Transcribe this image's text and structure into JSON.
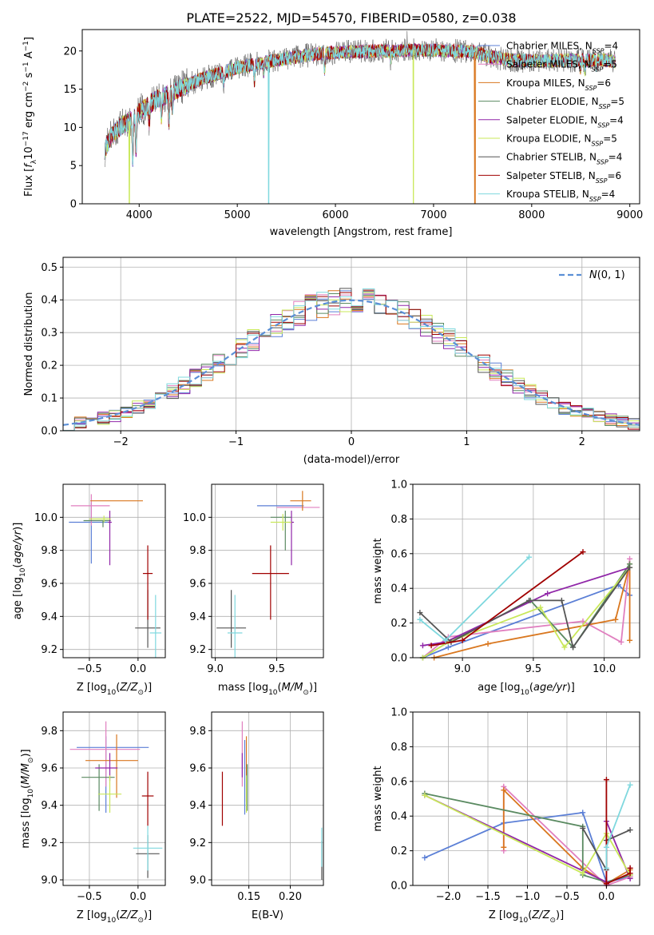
{
  "title": "PLATE=2522, MJD=54570, FIBERID=0580, z=0.038",
  "colors": {
    "series": [
      "#5b7fd6",
      "#e07fbf",
      "#d9771f",
      "#5a8a61",
      "#9026a8",
      "#c9e85a",
      "#555555",
      "#a00000",
      "#7fd8de"
    ],
    "gauss": "#5b8fd6",
    "grid": "#b0b0b0"
  },
  "chart_data": [
    {
      "id": "spectrum",
      "type": "line",
      "xlabel": "wavelength [Angstrom, rest frame]",
      "ylabel": "Flux [f_λ10^{-17} erg cm^{-2} s^{-1} A^{-1}]",
      "xlim": [
        3420,
        9100
      ],
      "ylim": [
        0,
        22.8
      ],
      "xticks": [
        4000,
        5000,
        6000,
        7000,
        8000,
        9000
      ],
      "yticks": [
        0,
        5,
        10,
        15,
        20
      ],
      "grid": false,
      "legend_position": "right",
      "legend": [
        {
          "model": "Chabrier MILES",
          "n": "4"
        },
        {
          "model": "Salpeter MILES",
          "n": "5"
        },
        {
          "model": "Kroupa MILES",
          "n": "6"
        },
        {
          "model": "Chabrier ELODIE",
          "n": "5"
        },
        {
          "model": "Salpeter ELODIE",
          "n": "4"
        },
        {
          "model": "Kroupa ELODIE",
          "n": "5"
        },
        {
          "model": "Chabrier STELIB",
          "n": "4"
        },
        {
          "model": "Salpeter STELIB",
          "n": "6"
        },
        {
          "model": "Kroupa STELIB",
          "n": "4"
        }
      ],
      "continuum": [
        [
          3650,
          7.0
        ],
        [
          3700,
          8.5
        ],
        [
          3800,
          10.0
        ],
        [
          3900,
          10.8
        ],
        [
          4000,
          12.0
        ],
        [
          4100,
          13.0
        ],
        [
          4200,
          13.8
        ],
        [
          4400,
          15.0
        ],
        [
          4600,
          16.2
        ],
        [
          4800,
          17.0
        ],
        [
          5000,
          17.8
        ],
        [
          5200,
          18.3
        ],
        [
          5400,
          18.8
        ],
        [
          5600,
          19.2
        ],
        [
          5800,
          19.6
        ],
        [
          6000,
          19.8
        ],
        [
          6200,
          19.9
        ],
        [
          6400,
          20.0
        ],
        [
          6600,
          20.0
        ],
        [
          6800,
          20.1
        ],
        [
          7000,
          20.1
        ],
        [
          7200,
          20.0
        ],
        [
          7400,
          19.9
        ],
        [
          7600,
          19.2
        ],
        [
          7800,
          18.8
        ],
        [
          8000,
          18.7
        ],
        [
          8200,
          18.7
        ],
        [
          8400,
          18.8
        ],
        [
          8600,
          18.8
        ],
        [
          8700,
          18.9
        ],
        [
          8850,
          18.6
        ]
      ],
      "absorptions": [
        [
          3934,
          5.5
        ],
        [
          3968,
          4.5
        ],
        [
          4102,
          2.5
        ],
        [
          4227,
          2.5
        ],
        [
          4304,
          4.0
        ],
        [
          4340,
          2.0
        ],
        [
          4861,
          1.5
        ],
        [
          5175,
          2.2
        ],
        [
          5270,
          1.2
        ],
        [
          5890,
          2.2
        ],
        [
          6563,
          1.0
        ],
        [
          8498,
          1.0
        ],
        [
          8542,
          1.2
        ],
        [
          8662,
          1.0
        ]
      ],
      "drops": [
        {
          "series": 5,
          "x": 3900,
          "to": 0
        },
        {
          "series": 8,
          "x": 5320,
          "to": 0
        },
        {
          "series": 5,
          "x": 6795,
          "to": 0
        },
        {
          "series": 2,
          "x": 7420,
          "to": 0
        }
      ],
      "spike": {
        "x": 6730,
        "y": 22.6
      }
    },
    {
      "id": "residuals",
      "type": "line",
      "xlabel": "(data-model)/error",
      "ylabel": "Normed distribution",
      "xlim": [
        -2.5,
        2.5
      ],
      "ylim": [
        0,
        0.53
      ],
      "xticks": [
        -2,
        -1,
        0,
        1,
        2
      ],
      "yticks": [
        0,
        0.1,
        0.2,
        0.3,
        0.4,
        0.5
      ],
      "grid": true,
      "legend_position": "upper right",
      "legend_label": "N(0,1)",
      "bin_width": 0.1,
      "bin_start": -2.5,
      "bins": 50,
      "noise_amplitude": 0.03
    },
    {
      "id": "z_age",
      "type": "scatter",
      "xlabel": "Z [log10(Z/Z⊙)]",
      "ylabel": "age [log10(age/yr)]",
      "xlim": [
        -0.77,
        0.28
      ],
      "ylim": [
        9.15,
        10.2
      ],
      "xticks": [
        -0.5,
        0.0
      ],
      "yticks": [
        9.2,
        9.4,
        9.6,
        9.8,
        10.0
      ],
      "grid": true,
      "points": [
        {
          "s": 0,
          "x": -0.48,
          "xe": [
            0.23,
            0.17
          ],
          "y": 9.97,
          "ye": [
            0.25,
            0.12
          ]
        },
        {
          "s": 1,
          "x": -0.48,
          "xe": [
            0.21,
            0.19
          ],
          "y": 10.07,
          "ye": [
            0.12,
            0.07
          ]
        },
        {
          "s": 2,
          "x": -0.22,
          "xe": [
            0.27,
            0.27
          ],
          "y": 10.1,
          "ye": [
            0.0,
            0.0
          ]
        },
        {
          "s": 3,
          "x": -0.36,
          "xe": [
            0.2,
            0.08
          ],
          "y": 9.98,
          "ye": [
            0.04,
            0.0
          ]
        },
        {
          "s": 4,
          "x": -0.29,
          "xe": [
            0.02,
            0.02
          ],
          "y": 9.97,
          "ye": [
            0.26,
            0.07
          ]
        },
        {
          "s": 5,
          "x": -0.35,
          "xe": [
            0.15,
            0.07
          ],
          "y": 9.99,
          "ye": [
            0.02,
            0.02
          ]
        },
        {
          "s": 6,
          "x": 0.1,
          "xe": [
            0.13,
            0.13
          ],
          "y": 9.33,
          "ye": [
            0.12,
            0.23
          ]
        },
        {
          "s": 7,
          "x": 0.1,
          "xe": [
            0.05,
            0.05
          ],
          "y": 9.66,
          "ye": [
            0.28,
            0.17
          ]
        },
        {
          "s": 8,
          "x": 0.18,
          "xe": [
            0.06,
            0.06
          ],
          "y": 9.3,
          "ye": [
            0.15,
            0.23
          ]
        }
      ]
    },
    {
      "id": "mass_age",
      "type": "scatter",
      "xlabel": "mass [log10(M/M⊙)]",
      "ylabel": "",
      "xlim": [
        8.97,
        9.88
      ],
      "ylim": [
        9.15,
        10.2
      ],
      "xticks": [
        9.0,
        9.5
      ],
      "yticks": [
        9.2,
        9.4,
        9.6,
        9.8,
        10.0
      ],
      "grid": true,
      "points": [
        {
          "s": 0,
          "x": 9.62,
          "xe": [
            0.28,
            0.1
          ],
          "y": 10.07,
          "ye": [
            0.0,
            0.0
          ]
        },
        {
          "s": 1,
          "x": 9.7,
          "xe": [
            0.2,
            0.15
          ],
          "y": 10.06,
          "ye": [
            0.0,
            0.0
          ]
        },
        {
          "s": 2,
          "x": 9.71,
          "xe": [
            0.1,
            0.07
          ],
          "y": 10.1,
          "ye": [
            0.06,
            0.06
          ]
        },
        {
          "s": 3,
          "x": 9.57,
          "xe": [
            0.12,
            0.05
          ],
          "y": 10.0,
          "ye": [
            0.2,
            0.04
          ]
        },
        {
          "s": 4,
          "x": 9.62,
          "xe": [
            0.02,
            0.02
          ],
          "y": 9.97,
          "ye": [
            0.26,
            0.07
          ]
        },
        {
          "s": 5,
          "x": 9.55,
          "xe": [
            0.1,
            0.07
          ],
          "y": 9.97,
          "ye": [
            0.05,
            0.05
          ]
        },
        {
          "s": 6,
          "x": 9.13,
          "xe": [
            0.12,
            0.12
          ],
          "y": 9.33,
          "ye": [
            0.12,
            0.23
          ]
        },
        {
          "s": 7,
          "x": 9.45,
          "xe": [
            0.15,
            0.15
          ],
          "y": 9.66,
          "ye": [
            0.28,
            0.17
          ]
        },
        {
          "s": 8,
          "x": 9.16,
          "xe": [
            0.06,
            0.06
          ],
          "y": 9.3,
          "ye": [
            0.15,
            0.23
          ]
        }
      ]
    },
    {
      "id": "age_weight",
      "type": "line",
      "xlabel": "age [log10(age/yr)]",
      "ylabel": "mass weight",
      "xlim": [
        8.65,
        10.25
      ],
      "ylim": [
        0,
        1.0
      ],
      "xticks": [
        9.0,
        9.5,
        10.0
      ],
      "yticks": [
        0,
        0.2,
        0.4,
        0.6,
        0.8,
        1.0
      ],
      "grid": true,
      "series": [
        {
          "s": 0,
          "x": [
            8.72,
            8.9,
            10.1,
            10.18
          ],
          "y": [
            0.0,
            0.06,
            0.42,
            0.36
          ]
        },
        {
          "s": 1,
          "x": [
            8.72,
            8.9,
            9.85,
            10.12,
            10.18
          ],
          "y": [
            0.0,
            0.12,
            0.21,
            0.09,
            0.57
          ]
        },
        {
          "s": 2,
          "x": [
            8.8,
            9.18,
            10.08,
            10.18,
            10.18
          ],
          "y": [
            0.0,
            0.08,
            0.22,
            0.54,
            0.1
          ]
        },
        {
          "s": 3,
          "x": [
            8.72,
            8.9,
            9.48,
            9.78,
            10.18
          ],
          "y": [
            0.0,
            0.09,
            0.33,
            0.06,
            0.54
          ]
        },
        {
          "s": 4,
          "x": [
            8.72,
            8.88,
            9.6,
            10.18
          ],
          "y": [
            0.07,
            0.09,
            0.37,
            0.52
          ]
        },
        {
          "s": 5,
          "x": [
            8.72,
            8.9,
            9.55,
            9.72,
            10.18
          ],
          "y": [
            0.0,
            0.09,
            0.29,
            0.06,
            0.52
          ]
        },
        {
          "s": 6,
          "x": [
            8.7,
            8.92,
            9.47,
            9.7,
            9.78,
            10.18
          ],
          "y": [
            0.26,
            0.09,
            0.33,
            0.33,
            0.06,
            0.52
          ]
        },
        {
          "s": 7,
          "x": [
            8.78,
            9.0,
            9.85
          ],
          "y": [
            0.07,
            0.1,
            0.61
          ]
        },
        {
          "s": 8,
          "x": [
            8.7,
            8.88,
            9.47
          ],
          "y": [
            0.22,
            0.1,
            0.58
          ]
        }
      ]
    },
    {
      "id": "z_mass",
      "type": "scatter",
      "xlabel": "Z [log10(Z/Z⊙)]",
      "ylabel": "mass [log10(M/M⊙)]",
      "xlim": [
        -0.77,
        0.28
      ],
      "ylim": [
        8.97,
        9.9
      ],
      "xticks": [
        -0.5,
        0.0
      ],
      "yticks": [
        9.0,
        9.2,
        9.4,
        9.6,
        9.8
      ],
      "grid": true,
      "points": [
        {
          "s": 0,
          "x": -0.33,
          "xe": [
            0.3,
            0.44
          ],
          "y": 9.71,
          "ye": [
            0.35,
            0.06
          ]
        },
        {
          "s": 1,
          "x": -0.33,
          "xe": [
            0.37,
            0.35
          ],
          "y": 9.7,
          "ye": [
            0.2,
            0.15
          ]
        },
        {
          "s": 2,
          "x": -0.22,
          "xe": [
            0.32,
            0.22
          ],
          "y": 9.64,
          "ye": [
            0.2,
            0.14
          ]
        },
        {
          "s": 3,
          "x": -0.4,
          "xe": [
            0.18,
            0.16
          ],
          "y": 9.55,
          "ye": [
            0.18,
            0.07
          ]
        },
        {
          "s": 4,
          "x": -0.29,
          "xe": [
            0.15,
            0.08
          ],
          "y": 9.6,
          "ye": [
            0.07,
            0.08
          ]
        },
        {
          "s": 5,
          "x": -0.29,
          "xe": [
            0.12,
            0.12
          ],
          "y": 9.46,
          "ye": [
            0.1,
            0.1
          ]
        },
        {
          "s": 6,
          "x": 0.1,
          "xe": [
            0.12,
            0.12
          ],
          "y": 9.14,
          "ye": [
            0.13,
            0.1
          ]
        },
        {
          "s": 7,
          "x": 0.1,
          "xe": [
            0.06,
            0.06
          ],
          "y": 9.45,
          "ye": [
            0.16,
            0.13
          ]
        },
        {
          "s": 8,
          "x": 0.1,
          "xe": [
            0.15,
            0.15
          ],
          "y": 9.17,
          "ye": [
            0.12,
            0.12
          ]
        }
      ]
    },
    {
      "id": "ebv_mass",
      "type": "scatter",
      "xlabel": "E(B-V)",
      "ylabel": "",
      "xlim": [
        0.105,
        0.24
      ],
      "ylim": [
        8.97,
        9.9
      ],
      "xticks": [
        0.15,
        0.2
      ],
      "yticks": [
        9.0,
        9.2,
        9.4,
        9.6,
        9.8
      ],
      "grid": true,
      "points": [
        {
          "s": 0,
          "x": 0.145,
          "y": 9.6,
          "ye": [
            0.25,
            0.15
          ]
        },
        {
          "s": 1,
          "x": 0.142,
          "y": 9.7,
          "ye": [
            0.2,
            0.15
          ]
        },
        {
          "s": 2,
          "x": 0.147,
          "y": 9.64,
          "ye": [
            0.22,
            0.13
          ]
        },
        {
          "s": 3,
          "x": 0.148,
          "y": 9.55,
          "ye": [
            0.18,
            0.07
          ]
        },
        {
          "s": 4,
          "x": 0.142,
          "y": 9.6,
          "ye": [
            0.05,
            0.08
          ]
        },
        {
          "s": 5,
          "x": 0.147,
          "y": 9.46,
          "ye": [
            0.1,
            0.1
          ]
        },
        {
          "s": 6,
          "x": 0.238,
          "y": 9.13,
          "ye": [
            0.13,
            0.08
          ]
        },
        {
          "s": 7,
          "x": 0.118,
          "y": 9.44,
          "ye": [
            0.15,
            0.14
          ]
        },
        {
          "s": 8,
          "x": 0.238,
          "y": 9.17,
          "ye": [
            0.1,
            0.11
          ]
        }
      ]
    },
    {
      "id": "z_weight",
      "type": "line",
      "xlabel": "Z [log10(Z/Z⊙)]",
      "ylabel": "mass weight",
      "xlim": [
        -2.45,
        0.42
      ],
      "ylim": [
        0,
        1.0
      ],
      "xticks": [
        -2.0,
        -1.5,
        -1.0,
        -0.5,
        0.0
      ],
      "yticks": [
        0,
        0.2,
        0.4,
        0.6,
        0.8,
        1.0
      ],
      "grid": true,
      "series": [
        {
          "s": 0,
          "x": [
            -2.3,
            -1.3,
            -0.3,
            0.0,
            0.3
          ],
          "y": [
            0.16,
            0.36,
            0.42,
            0.02,
            0.05
          ]
        },
        {
          "s": 1,
          "x": [
            -1.3,
            -1.3,
            0.0,
            0.3,
            0.3
          ],
          "y": [
            0.2,
            0.57,
            0.0,
            0.05,
            0.1
          ]
        },
        {
          "s": 2,
          "x": [
            -1.3,
            -1.3,
            -0.3,
            0.0,
            0.3
          ],
          "y": [
            0.22,
            0.55,
            0.1,
            0.01,
            0.09
          ]
        },
        {
          "s": 3,
          "x": [
            -2.3,
            -0.3,
            -0.3,
            0.0,
            0.3
          ],
          "y": [
            0.53,
            0.34,
            0.06,
            0.02,
            0.06
          ]
        },
        {
          "s": 4,
          "x": [
            -2.3,
            0.0,
            0.0,
            0.3
          ],
          "y": [
            0.52,
            0.02,
            0.37,
            0.04
          ]
        },
        {
          "s": 5,
          "x": [
            -2.3,
            -0.3,
            0.0,
            0.3
          ],
          "y": [
            0.52,
            0.07,
            0.3,
            0.06
          ]
        },
        {
          "s": 6,
          "x": [
            -0.3,
            0.0,
            0.0,
            0.3
          ],
          "y": [
            0.33,
            0.09,
            0.26,
            0.32
          ]
        },
        {
          "s": 7,
          "x": [
            0.0,
            0.0,
            0.3,
            0.3
          ],
          "y": [
            0.61,
            0.01,
            0.07,
            0.1
          ]
        },
        {
          "s": 8,
          "x": [
            0.0,
            0.0,
            0.3
          ],
          "y": [
            0.1,
            0.22,
            0.58
          ]
        }
      ]
    }
  ]
}
